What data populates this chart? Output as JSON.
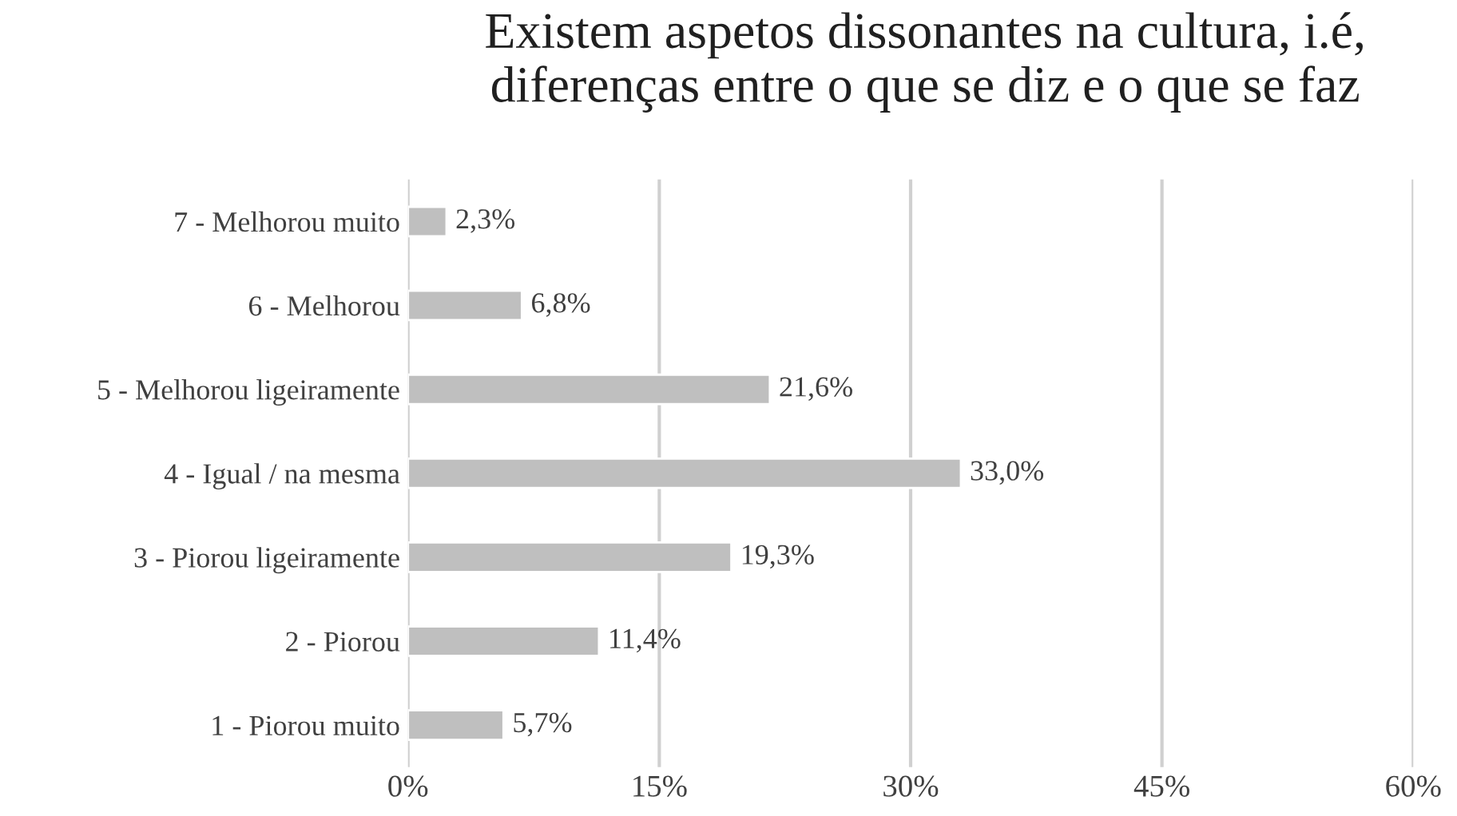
{
  "chart_data": {
    "type": "bar",
    "orientation": "horizontal",
    "title": "Existem aspetos dissonantes na cultura, i.é,\ndiferenças entre o que se diz e o que se faz",
    "categories": [
      "7 - Melhorou muito",
      "6 - Melhorou",
      "5 - Melhorou ligeiramente",
      "4 - Igual / na mesma",
      "3 - Piorou ligeiramente",
      "2 - Piorou",
      "1 - Piorou muito"
    ],
    "values": [
      2.3,
      6.8,
      21.6,
      33.0,
      19.3,
      11.4,
      5.7
    ],
    "value_labels": [
      "2,3%",
      "6,8%",
      "21,6%",
      "33,0%",
      "19,3%",
      "11,4%",
      "5,7%"
    ],
    "color": "#bfbfbf",
    "xlim": [
      0,
      60
    ],
    "xticks": [
      {
        "value": 0,
        "label": "0%"
      },
      {
        "value": 15,
        "label": "15%"
      },
      {
        "value": 30,
        "label": "30%"
      },
      {
        "value": 45,
        "label": "45%"
      },
      {
        "value": 60,
        "label": "60%"
      }
    ],
    "grid": "x"
  }
}
